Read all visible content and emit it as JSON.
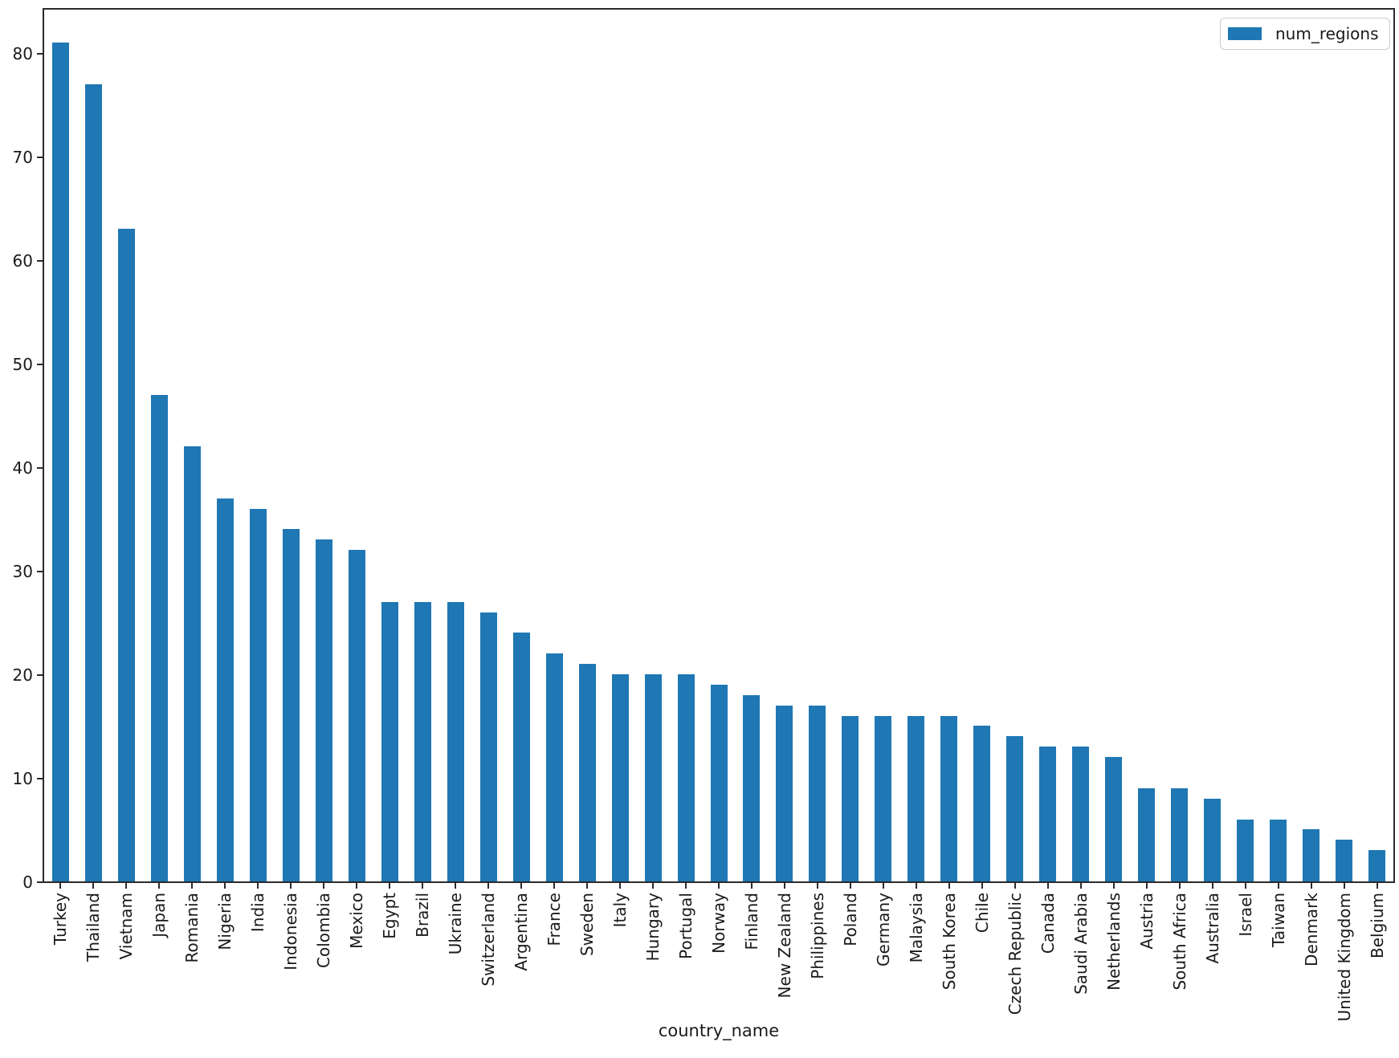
{
  "chart_data": {
    "type": "bar",
    "title": "",
    "xlabel": "country_name",
    "ylabel": "",
    "legend_label": "num_regions",
    "legend_position": "upper right",
    "bar_color": "#1f77b4",
    "grid": false,
    "ylim": [
      0,
      84.2
    ],
    "yticks": [
      0,
      10,
      20,
      30,
      40,
      50,
      60,
      70,
      80
    ],
    "categories": [
      "Turkey",
      "Thailand",
      "Vietnam",
      "Japan",
      "Romania",
      "Nigeria",
      "India",
      "Indonesia",
      "Colombia",
      "Mexico",
      "Egypt",
      "Brazil",
      "Ukraine",
      "Switzerland",
      "Argentina",
      "France",
      "Sweden",
      "Italy",
      "Hungary",
      "Portugal",
      "Norway",
      "Finland",
      "New Zealand",
      "Philippines",
      "Poland",
      "Germany",
      "Malaysia",
      "South Korea",
      "Chile",
      "Czech Republic",
      "Canada",
      "Saudi Arabia",
      "Netherlands",
      "Austria",
      "South Africa",
      "Australia",
      "Israel",
      "Taiwan",
      "Denmark",
      "United Kingdom",
      "Belgium"
    ],
    "values": [
      81,
      77,
      63,
      47,
      42,
      37,
      36,
      34,
      33,
      32,
      27,
      27,
      27,
      26,
      24,
      22,
      21,
      20,
      20,
      20,
      19,
      18,
      17,
      17,
      16,
      16,
      16,
      16,
      15,
      14,
      13,
      13,
      12,
      9,
      9,
      8,
      6,
      6,
      5,
      4,
      3
    ]
  }
}
